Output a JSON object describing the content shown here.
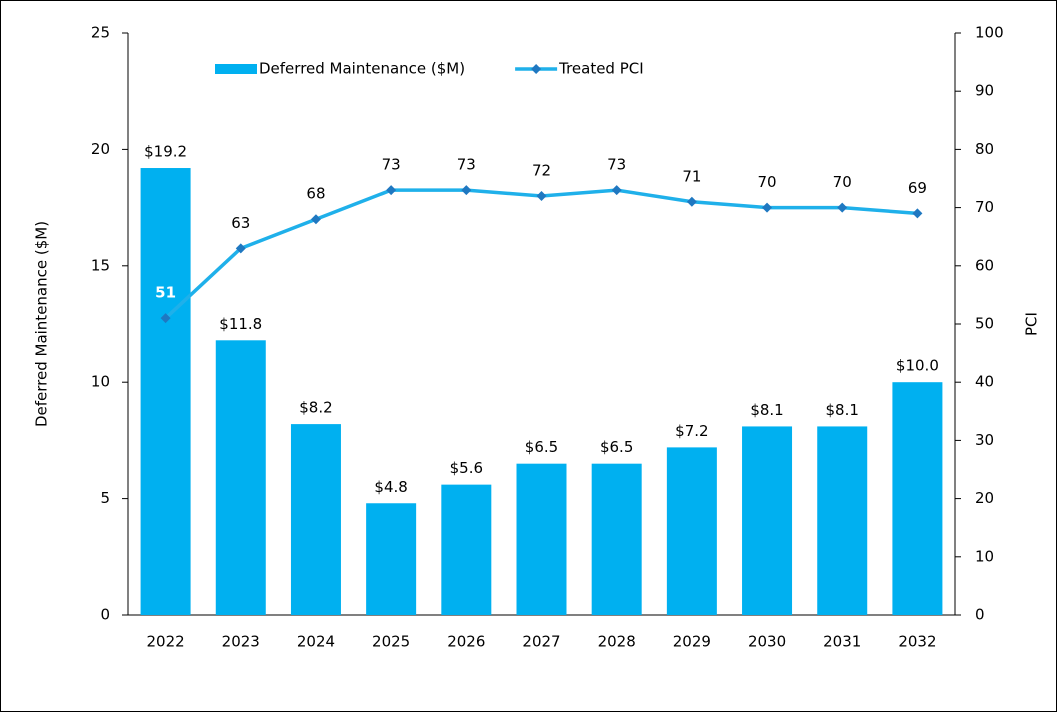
{
  "chart_data": {
    "type": "bar",
    "categories": [
      "2022",
      "2023",
      "2024",
      "2025",
      "2026",
      "2027",
      "2028",
      "2029",
      "2030",
      "2031",
      "2032"
    ],
    "series": [
      {
        "name": "Deferred Maintenance ($M)",
        "type": "bar",
        "color": "#00b0f0",
        "values": [
          19.2,
          11.8,
          8.2,
          4.8,
          5.6,
          6.5,
          6.5,
          7.2,
          8.1,
          8.1,
          10
        ],
        "value_labels": [
          "$19.2",
          "$11.8",
          "$8.2",
          "$4.8",
          "$5.6",
          "$6.5",
          "$6.5",
          "$7.2",
          "$8.1",
          "$8.1",
          "$10.0"
        ]
      },
      {
        "name": "Treated PCI",
        "type": "line",
        "axis": "y2",
        "color": "#1fb0ea",
        "marker_color": "#1f78c1",
        "values": [
          51,
          63,
          68,
          73,
          73,
          72,
          73,
          71,
          70,
          70,
          69
        ]
      }
    ],
    "ylabel": "Deferred Maintenance ($M)",
    "y2label": "PCI",
    "ylim": [
      0,
      25
    ],
    "yticks": [
      0,
      5,
      10,
      15,
      20,
      25
    ],
    "y2lim": [
      0,
      100
    ],
    "y2ticks": [
      0,
      10,
      20,
      30,
      40,
      50,
      60,
      70,
      80,
      90,
      100
    ],
    "legend": "top"
  }
}
